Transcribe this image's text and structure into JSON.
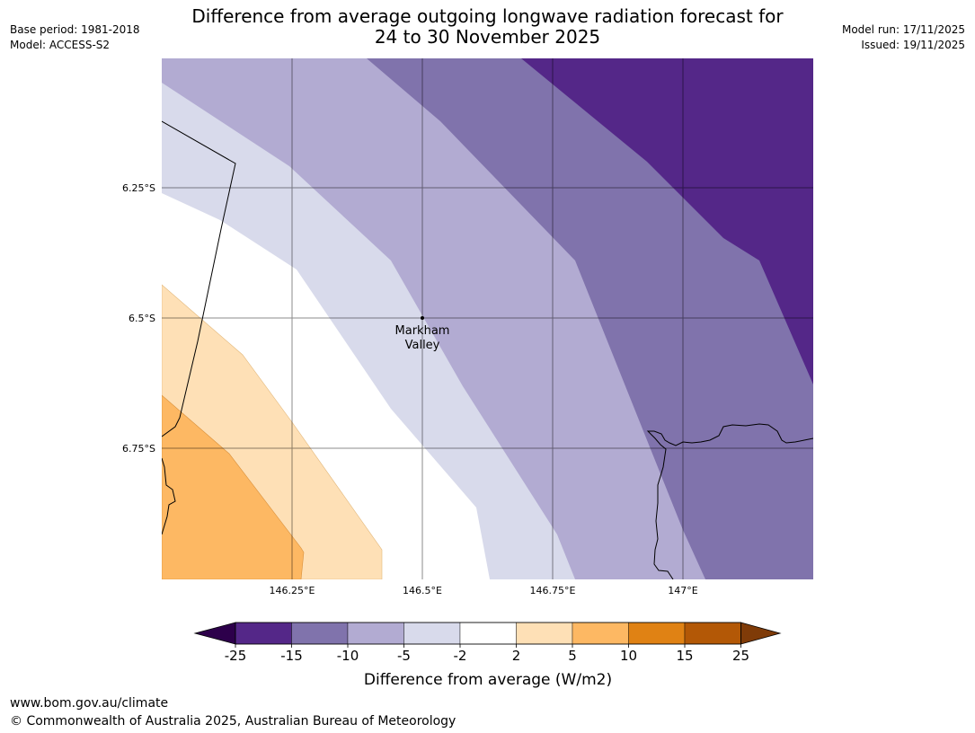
{
  "header": {
    "title_line1": "Difference from average outgoing longwave radiation forecast for",
    "title_line2": "24 to 30 November 2025",
    "base_period": "Base period: 1981-2018",
    "model": "Model: ACCESS-S2",
    "model_run": "Model run: 17/11/2025",
    "issued": "Issued: 19/11/2025"
  },
  "map": {
    "lat_labels": [
      "6.25°S",
      "6.5°S",
      "6.75°S"
    ],
    "lon_labels": [
      "146.25°E",
      "146.5°E",
      "146.75°E",
      "147°E"
    ],
    "place_name_line1": "Markham",
    "place_name_line2": "Valley"
  },
  "legend": {
    "tick_labels": [
      "-25",
      "-15",
      "-10",
      "-5",
      "-2",
      "2",
      "5",
      "10",
      "15",
      "25"
    ],
    "label": "Difference from average (W/m2)",
    "colors": [
      "#2d004b",
      "#542788",
      "#8073ac",
      "#b2abd2",
      "#d8daeb",
      "#ffffff",
      "#fee0b6",
      "#fdb863",
      "#e08214",
      "#b35806",
      "#7f3b08"
    ]
  },
  "footer": {
    "url": "www.bom.gov.au/climate",
    "copyright": "© Commonwealth of Australia 2025, Australian Bureau of Meteorology"
  }
}
